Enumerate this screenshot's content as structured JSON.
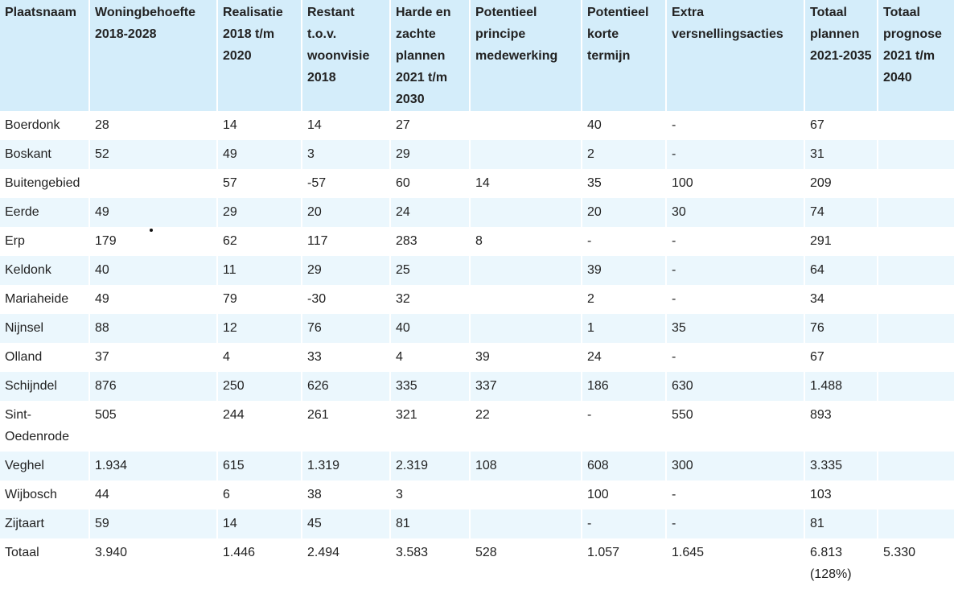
{
  "table": {
    "headers": [
      "Plaatsnaam",
      "Woningbehoefte 2018-2028",
      "Realisatie 2018 t/m 2020",
      "Restant t.o.v. woonvisie 2018",
      "Harde en zachte plannen 2021 t/m 2030",
      "Potentieel principe medewerking",
      "Potentieel korte termijn",
      "Extra versnellingsacties",
      "Totaal plannen 2021-2035",
      "Totaal prognose 2021 t/m 2040"
    ],
    "rows": [
      [
        "Boerdonk",
        "28",
        "14",
        "14",
        "27",
        "",
        "40",
        "-",
        "67",
        ""
      ],
      [
        "Boskant",
        "52",
        "49",
        "3",
        "29",
        "",
        "2",
        "-",
        "31",
        ""
      ],
      [
        "Buitengebied",
        "",
        "57",
        "-57",
        "60",
        "14",
        "35",
        "100",
        "209",
        ""
      ],
      [
        "Eerde",
        "49",
        "29",
        "20",
        "24",
        "",
        "20",
        "30",
        "74",
        ""
      ],
      [
        "Erp",
        "179",
        "62",
        "117",
        "283",
        "8",
        "-",
        "-",
        "291",
        ""
      ],
      [
        "Keldonk",
        "40",
        "11",
        "29",
        "25",
        "",
        "39",
        "-",
        "64",
        ""
      ],
      [
        "Mariaheide",
        "49",
        "79",
        "-30",
        "32",
        "",
        "2",
        "-",
        "34",
        ""
      ],
      [
        "Nijnsel",
        "88",
        "12",
        "76",
        "40",
        "",
        "1",
        "35",
        "76",
        ""
      ],
      [
        "Olland",
        "37",
        "4",
        "33",
        "4",
        "39",
        "24",
        "-",
        "67",
        ""
      ],
      [
        "Schijndel",
        "876",
        "250",
        "626",
        "335",
        "337",
        "186",
        "630",
        "1.488",
        ""
      ],
      [
        "Sint-Oedenrode",
        "505",
        "244",
        "261",
        "321",
        "22",
        "-",
        "550",
        "893",
        ""
      ],
      [
        "Veghel",
        "1.934",
        "615",
        "1.319",
        "2.319",
        "108",
        "608",
        "300",
        "3.335",
        ""
      ],
      [
        "Wijbosch",
        "44",
        "6",
        "38",
        "3",
        "",
        "100",
        "-",
        "103",
        ""
      ],
      [
        "Zijtaart",
        "59",
        "14",
        "45",
        "81",
        "",
        "-",
        "-",
        "81",
        ""
      ],
      [
        "Totaal",
        "3.940",
        "1.446",
        "2.494",
        "3.583",
        "528",
        "1.057",
        "1.645",
        "6.813 (128%)",
        "5.330"
      ]
    ]
  }
}
